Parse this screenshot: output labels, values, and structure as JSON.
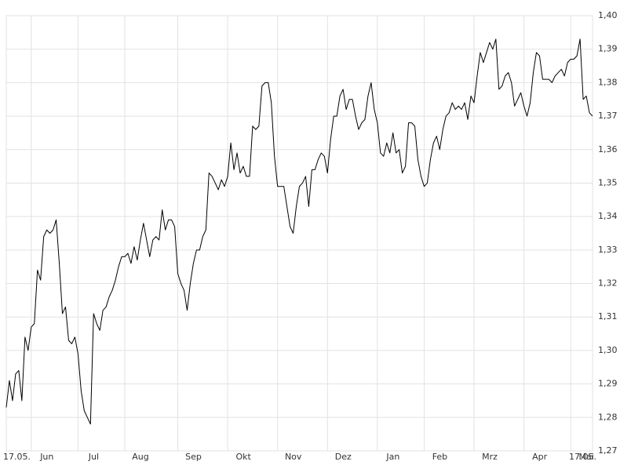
{
  "chart_data": {
    "type": "line",
    "categories": [
      "17.05.",
      null,
      null,
      null,
      null,
      null,
      null,
      null,
      "Jun",
      null,
      null,
      null,
      null,
      null,
      null,
      null,
      null,
      null,
      null,
      null,
      null,
      null,
      null,
      "Jul",
      null,
      null,
      null,
      null,
      null,
      null,
      null,
      null,
      null,
      null,
      null,
      null,
      null,
      null,
      "Aug",
      null,
      null,
      null,
      null,
      null,
      null,
      null,
      null,
      null,
      null,
      null,
      null,
      null,
      null,
      null,
      null,
      "Sep",
      null,
      null,
      null,
      null,
      null,
      null,
      null,
      null,
      null,
      null,
      null,
      null,
      null,
      null,
      null,
      "Okt",
      null,
      null,
      null,
      null,
      null,
      null,
      null,
      null,
      null,
      null,
      null,
      null,
      null,
      null,
      null,
      "Nov",
      null,
      null,
      null,
      null,
      null,
      null,
      null,
      null,
      null,
      null,
      null,
      null,
      null,
      null,
      null,
      "Dez",
      null,
      null,
      null,
      null,
      null,
      null,
      null,
      null,
      null,
      null,
      null,
      null,
      null,
      null,
      null,
      "Jan",
      null,
      null,
      null,
      null,
      null,
      null,
      null,
      null,
      null,
      null,
      null,
      null,
      null,
      null,
      "Feb",
      null,
      null,
      null,
      null,
      null,
      null,
      null,
      null,
      null,
      null,
      null,
      null,
      null,
      null,
      null,
      "Mrz",
      null,
      null,
      null,
      null,
      null,
      null,
      null,
      null,
      null,
      null,
      null,
      null,
      null,
      null,
      null,
      "Apr",
      null,
      null,
      null,
      null,
      null,
      null,
      null,
      null,
      null,
      null,
      null,
      null,
      null,
      null,
      "Mai",
      null,
      null,
      null,
      null,
      null,
      null,
      "17.05."
    ],
    "values": [
      1.283,
      1.291,
      1.285,
      1.293,
      1.294,
      1.285,
      1.304,
      1.3,
      1.307,
      1.308,
      1.324,
      1.321,
      1.334,
      1.336,
      1.335,
      1.336,
      1.339,
      1.326,
      1.311,
      1.313,
      1.303,
      1.302,
      1.304,
      1.299,
      1.288,
      1.282,
      1.28,
      1.278,
      1.311,
      1.308,
      1.306,
      1.312,
      1.313,
      1.316,
      1.318,
      1.321,
      1.325,
      1.328,
      1.328,
      1.329,
      1.326,
      1.331,
      1.327,
      1.333,
      1.338,
      1.333,
      1.328,
      1.333,
      1.334,
      1.333,
      1.342,
      1.336,
      1.339,
      1.339,
      1.337,
      1.323,
      1.32,
      1.318,
      1.312,
      1.32,
      1.326,
      1.33,
      1.33,
      1.334,
      1.336,
      1.353,
      1.352,
      1.35,
      1.348,
      1.351,
      1.349,
      1.352,
      1.362,
      1.354,
      1.359,
      1.353,
      1.355,
      1.352,
      1.352,
      1.367,
      1.366,
      1.367,
      1.379,
      1.38,
      1.38,
      1.374,
      1.358,
      1.349,
      1.349,
      1.349,
      1.343,
      1.337,
      1.335,
      1.343,
      1.349,
      1.35,
      1.352,
      1.343,
      1.354,
      1.354,
      1.357,
      1.359,
      1.358,
      1.353,
      1.363,
      1.37,
      1.37,
      1.376,
      1.378,
      1.372,
      1.375,
      1.375,
      1.37,
      1.366,
      1.368,
      1.369,
      1.376,
      1.38,
      1.372,
      1.368,
      1.359,
      1.358,
      1.362,
      1.359,
      1.365,
      1.359,
      1.36,
      1.353,
      1.355,
      1.368,
      1.368,
      1.367,
      1.357,
      1.352,
      1.349,
      1.35,
      1.357,
      1.362,
      1.364,
      1.36,
      1.366,
      1.37,
      1.371,
      1.374,
      1.372,
      1.373,
      1.372,
      1.374,
      1.369,
      1.376,
      1.374,
      1.382,
      1.389,
      1.386,
      1.389,
      1.392,
      1.39,
      1.393,
      1.378,
      1.379,
      1.382,
      1.383,
      1.38,
      1.373,
      1.375,
      1.377,
      1.373,
      1.37,
      1.374,
      1.383,
      1.389,
      1.388,
      1.381,
      1.381,
      1.381,
      1.38,
      1.382,
      1.383,
      1.384,
      1.382,
      1.386,
      1.387,
      1.387,
      1.388,
      1.393,
      1.375,
      1.376,
      1.371,
      1.37
    ],
    "color": "#000000",
    "ylim": [
      1.27,
      1.4
    ],
    "yticks": [
      {
        "value": 1.27,
        "label": "1,27"
      },
      {
        "value": 1.28,
        "label": "1,28"
      },
      {
        "value": 1.29,
        "label": "1,29"
      },
      {
        "value": 1.3,
        "label": "1,30"
      },
      {
        "value": 1.31,
        "label": "1,31"
      },
      {
        "value": 1.32,
        "label": "1,32"
      },
      {
        "value": 1.33,
        "label": "1,33"
      },
      {
        "value": 1.34,
        "label": "1,34"
      },
      {
        "value": 1.35,
        "label": "1,35"
      },
      {
        "value": 1.36,
        "label": "1,36"
      },
      {
        "value": 1.37,
        "label": "1,37"
      },
      {
        "value": 1.38,
        "label": "1,38"
      },
      {
        "value": 1.39,
        "label": "1,39"
      },
      {
        "value": 1.4,
        "label": "1,40"
      }
    ],
    "grid": true
  }
}
